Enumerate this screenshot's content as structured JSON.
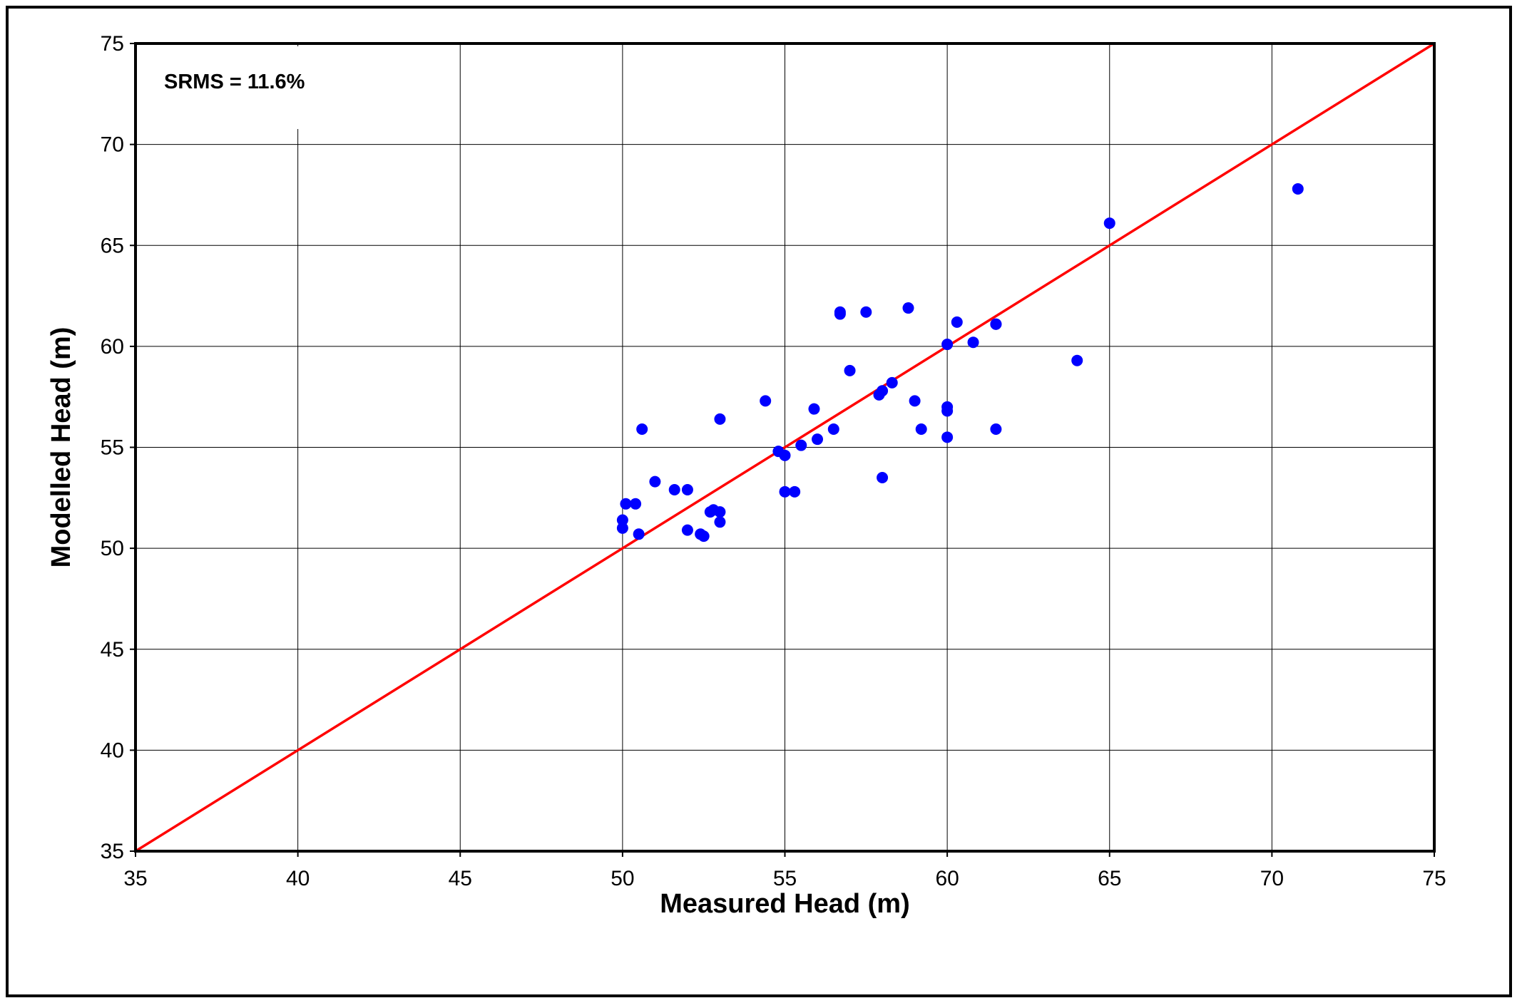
{
  "chart_data": {
    "type": "scatter",
    "xlabel": "Measured Head (m)",
    "ylabel": "Modelled Head (m)",
    "annotation": "SRMS = 11.6%",
    "xlim": [
      35,
      75
    ],
    "ylim": [
      35,
      75
    ],
    "xticks": [
      "35",
      "40",
      "45",
      "50",
      "55",
      "60",
      "65",
      "70",
      "75"
    ],
    "yticks": [
      "35",
      "40",
      "45",
      "50",
      "55",
      "60",
      "65",
      "70",
      "75"
    ],
    "grid": true,
    "point_color": "#0000ff",
    "line_color": "#ff0000",
    "reference_line": {
      "x": [
        35,
        75
      ],
      "y": [
        35,
        75
      ]
    },
    "series": [
      {
        "points": [
          [
            50.0,
            51.4
          ],
          [
            50.0,
            51.0
          ],
          [
            50.1,
            52.2
          ],
          [
            50.4,
            52.2
          ],
          [
            50.5,
            50.7
          ],
          [
            50.6,
            55.9
          ],
          [
            51.0,
            53.3
          ],
          [
            51.6,
            52.9
          ],
          [
            52.0,
            52.9
          ],
          [
            52.0,
            50.9
          ],
          [
            52.4,
            50.7
          ],
          [
            52.5,
            50.6
          ],
          [
            52.7,
            51.8
          ],
          [
            52.8,
            51.9
          ],
          [
            53.0,
            51.8
          ],
          [
            53.0,
            51.3
          ],
          [
            53.0,
            56.4
          ],
          [
            54.4,
            57.3
          ],
          [
            54.8,
            54.8
          ],
          [
            55.0,
            54.6
          ],
          [
            55.0,
            52.8
          ],
          [
            55.3,
            52.8
          ],
          [
            55.5,
            55.1
          ],
          [
            55.9,
            56.9
          ],
          [
            56.0,
            55.4
          ],
          [
            56.5,
            55.9
          ],
          [
            56.7,
            61.7
          ],
          [
            56.7,
            61.6
          ],
          [
            57.0,
            58.8
          ],
          [
            57.5,
            61.7
          ],
          [
            57.9,
            57.6
          ],
          [
            58.0,
            57.8
          ],
          [
            58.0,
            53.5
          ],
          [
            58.3,
            58.2
          ],
          [
            58.8,
            61.9
          ],
          [
            59.0,
            57.3
          ],
          [
            59.2,
            55.9
          ],
          [
            60.0,
            60.1
          ],
          [
            60.0,
            57.0
          ],
          [
            60.0,
            56.8
          ],
          [
            60.0,
            55.5
          ],
          [
            60.3,
            61.2
          ],
          [
            60.8,
            60.2
          ],
          [
            61.5,
            61.1
          ],
          [
            61.5,
            61.1
          ],
          [
            61.5,
            55.9
          ],
          [
            64.0,
            59.3
          ],
          [
            65.0,
            66.1
          ],
          [
            70.8,
            67.8
          ]
        ]
      }
    ]
  }
}
